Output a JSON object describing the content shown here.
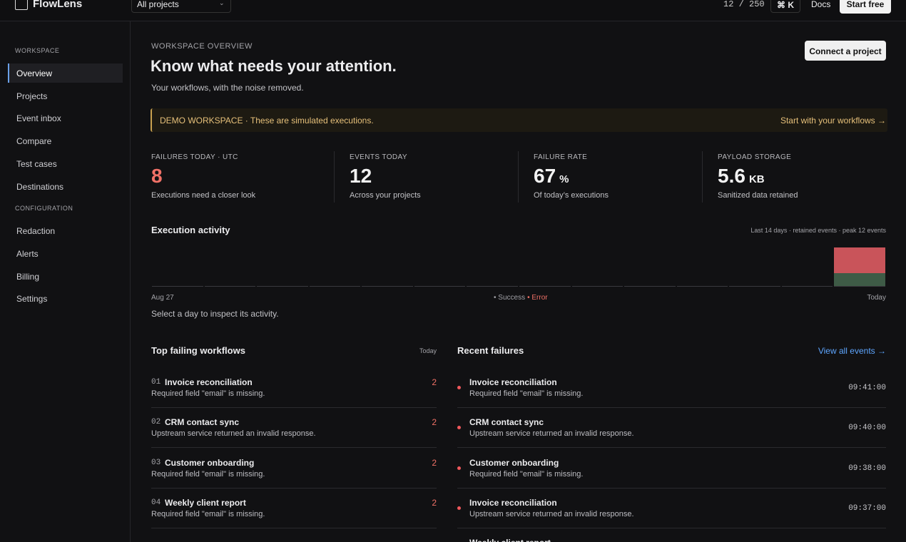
{
  "topbar": {
    "brand": "FlowLens",
    "project_select": "All projects",
    "usage": "12 / 250",
    "shortcut": "⌘ K",
    "docs": "Docs",
    "cta": "Start free"
  },
  "sidebar": {
    "active": "Overview",
    "sections": [
      {
        "title": "WORKSPACE",
        "items": [
          "Overview",
          "Projects",
          "Event inbox",
          "Compare",
          "Test cases",
          "Destinations"
        ]
      },
      {
        "title": "CONFIGURATION",
        "items": [
          "Redaction",
          "Alerts",
          "Billing",
          "Settings"
        ]
      }
    ]
  },
  "header": {
    "eyebrow": "WORKSPACE OVERVIEW",
    "title": "Know what needs your attention.",
    "subtitle": "Your workflows, with the noise removed.",
    "action": "Connect a project"
  },
  "banner": {
    "text": "DEMO WORKSPACE · These are simulated executions.",
    "link": "Start with your workflows →"
  },
  "stats": [
    {
      "label": "FAILURES TODAY · UTC",
      "value": 8,
      "note": "Executions need a closer look",
      "color": "#f07167"
    },
    {
      "label": "EVENTS TODAY",
      "value": 12,
      "note": "Across your projects"
    },
    {
      "label": "FAILURE RATE",
      "value": 67,
      "unit": "%",
      "note": "Of today’s executions"
    },
    {
      "label": "PAYLOAD STORAGE",
      "value": 5.6,
      "unit": "KB",
      "note": "Sanitized data retained"
    }
  ],
  "activity": {
    "title": "Execution activity",
    "caption": "Last 14 days · retained events · peak 12 events",
    "start_label": "Aug 27",
    "end_label": "Today",
    "ylim": [
      0,
      12
    ],
    "series": [
      {
        "name": "Success",
        "color": "#3e5b46",
        "legend_color": "#a0a0a6",
        "values": [
          0,
          0,
          0,
          0,
          0,
          0,
          0,
          0,
          0,
          0,
          0,
          0,
          0,
          4
        ]
      },
      {
        "name": "Error",
        "color": "#c9545a",
        "legend_color": "#f07167",
        "values": [
          0,
          0,
          0,
          0,
          0,
          0,
          0,
          0,
          0,
          0,
          0,
          0,
          0,
          8
        ]
      }
    ],
    "hint": "Select a day to inspect its activity."
  },
  "top_failing": {
    "title": "Top failing workflows",
    "period": "Today",
    "rows": [
      {
        "rank": "01",
        "name": "Invoice reconciliation",
        "message": "Required field \"email\" is missing.",
        "count": 2
      },
      {
        "rank": "02",
        "name": "CRM contact sync",
        "message": "Upstream service returned an invalid response.",
        "count": 2
      },
      {
        "rank": "03",
        "name": "Customer onboarding",
        "message": "Required field \"email\" is missing.",
        "count": 2
      },
      {
        "rank": "04",
        "name": "Weekly client report",
        "message": "Required field \"email\" is missing.",
        "count": 2
      }
    ]
  },
  "recent_failures": {
    "title": "Recent failures",
    "link": "View all events →",
    "rows": [
      {
        "name": "Invoice reconciliation",
        "message": "Required field \"email\" is missing.",
        "time": "09:41:00"
      },
      {
        "name": "CRM contact sync",
        "message": "Upstream service returned an invalid response.",
        "time": "09:40:00"
      },
      {
        "name": "Customer onboarding",
        "message": "Required field \"email\" is missing.",
        "time": "09:38:00"
      },
      {
        "name": "Invoice reconciliation",
        "message": "Upstream service returned an invalid response.",
        "time": "09:37:00"
      },
      {
        "name": "Weekly client report"
      }
    ]
  }
}
